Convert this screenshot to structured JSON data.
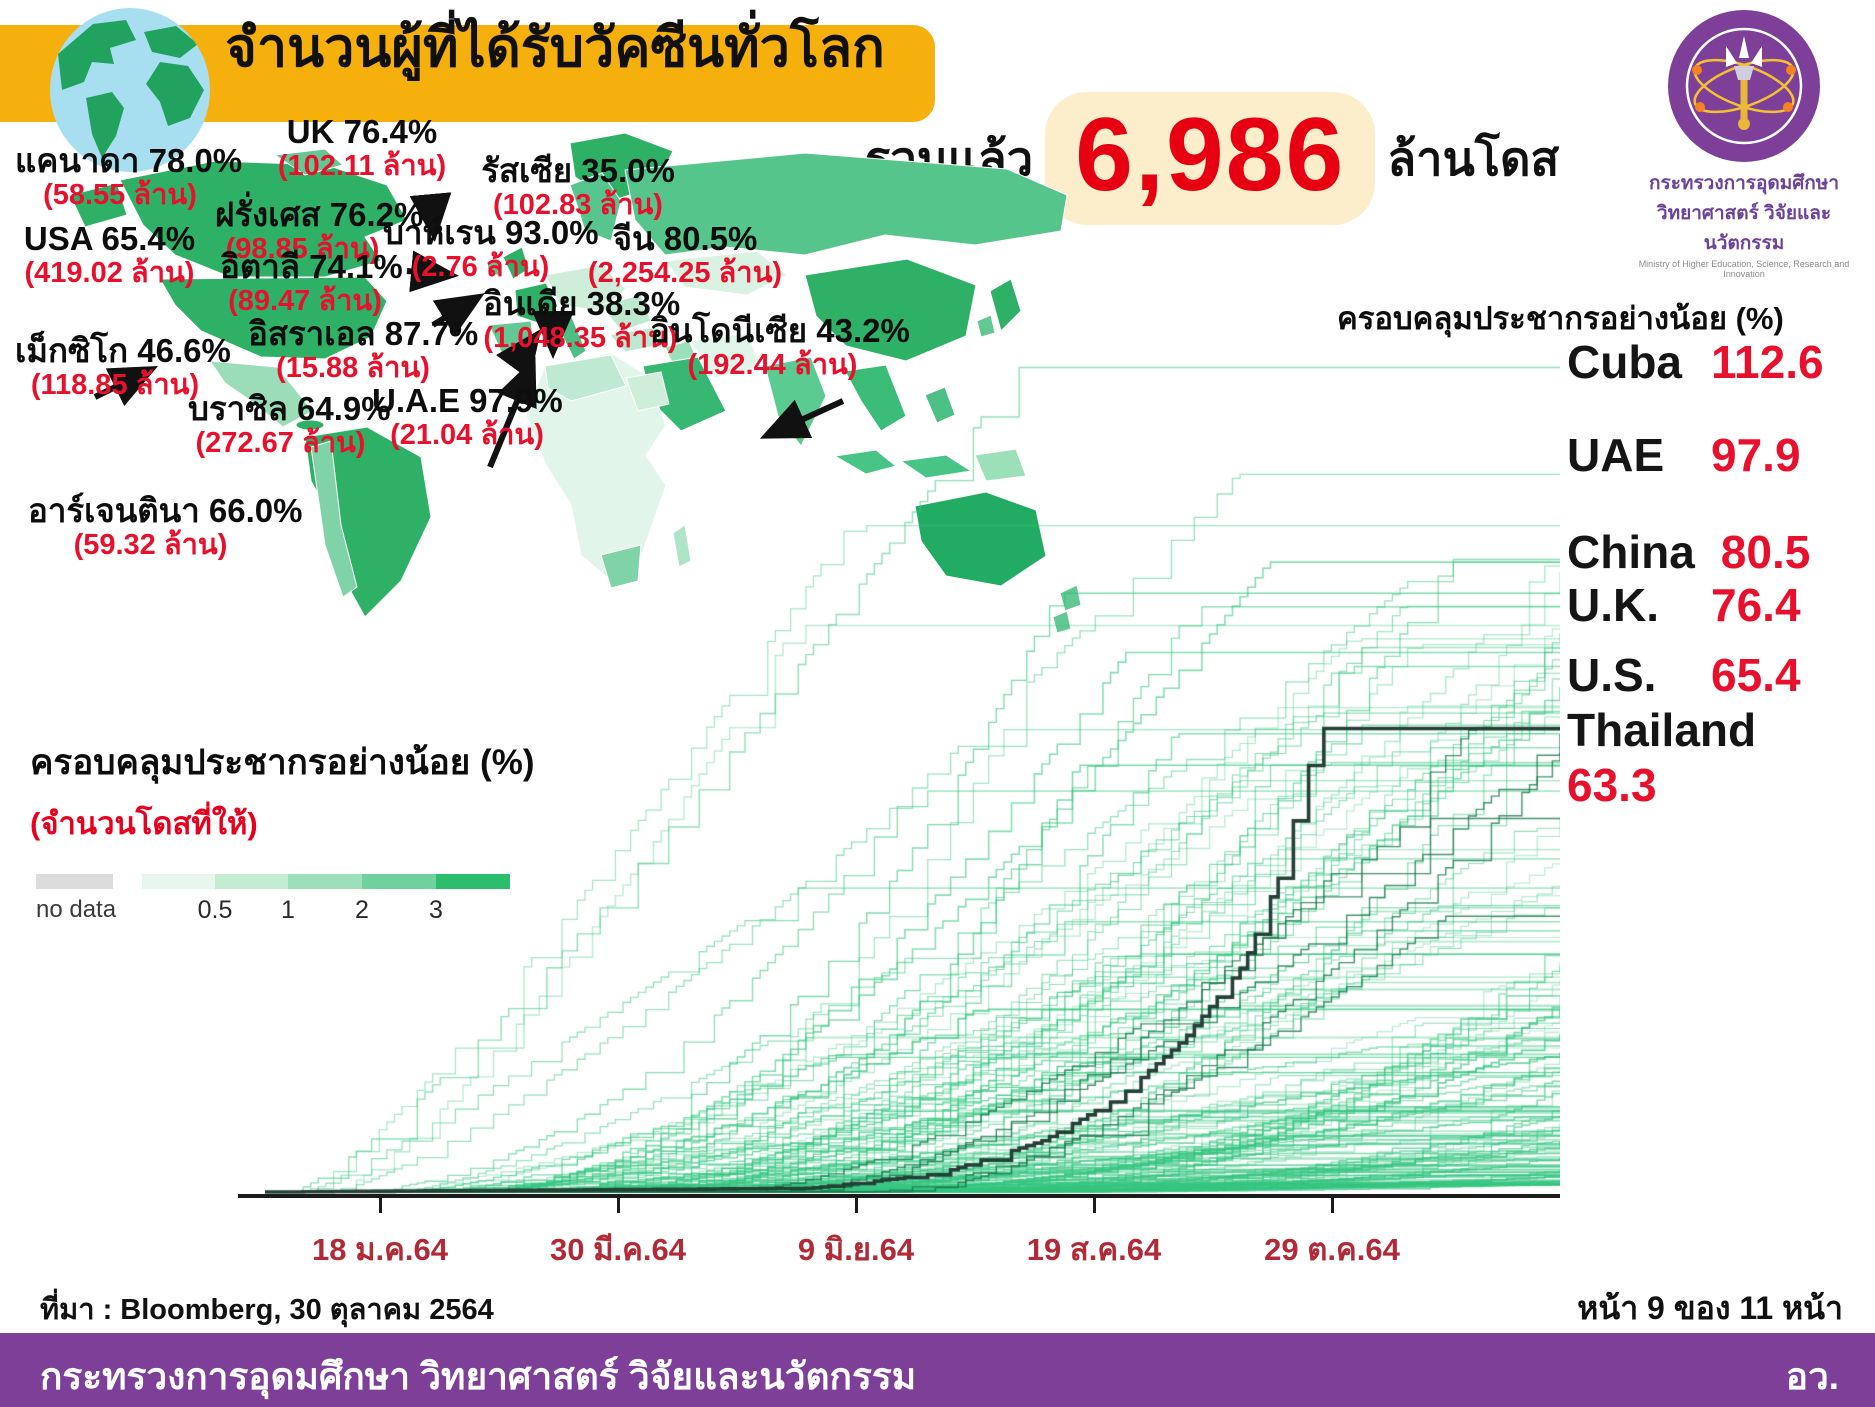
{
  "header": {
    "title": "จำนวนผู้ที่ได้รับวัคซีนทั่วโลก"
  },
  "logo": {
    "line1": "กระทรวงการอุดมศึกษา",
    "line2": "วิทยาศาสตร์ วิจัยและนวัตกรรม",
    "line3": "Ministry of Higher Education, Science, Research and Innovation"
  },
  "total": {
    "prefix": "รวมแล้ว",
    "value": "6,986",
    "suffix": "ล้านโดส"
  },
  "map": {
    "countries": [
      {
        "label": "แคนาดา 78.0%",
        "doses": "(58.55 ล้าน)"
      },
      {
        "label": "UK 76.4%",
        "doses": "(102.11 ล้าน)"
      },
      {
        "label": "รัสเซีย 35.0%",
        "doses": "(102.83 ล้าน)"
      },
      {
        "label": "ฝรั่งเศส 76.2%",
        "doses": "(98.85 ล้าน)"
      },
      {
        "label": "บาห์เรน 93.0%",
        "doses": "(2.76 ล้าน)"
      },
      {
        "label": "จีน 80.5%",
        "doses": "(2,254.25 ล้าน)"
      },
      {
        "label": "USA 65.4%",
        "doses": "(419.02 ล้าน)"
      },
      {
        "label": "อิตาลี 74.1%",
        "doses": "(89.47 ล้าน)"
      },
      {
        "label": "อิสราเอล 87.7%",
        "doses": "(15.88 ล้าน)"
      },
      {
        "label": "อินเดีย 38.3%",
        "doses": "(1,048.35 ล้าน)"
      },
      {
        "label": "อินโดนีเซีย 43.2%",
        "doses": "(192.44 ล้าน)"
      },
      {
        "label": "เม็กซิโก 46.6%",
        "doses": "(118.85 ล้าน)"
      },
      {
        "label": "บราซิล 64.9%",
        "doses": "(272.67 ล้าน)"
      },
      {
        "label": "U.A.E 97.9%",
        "doses": "(21.04 ล้าน)"
      },
      {
        "label": "อาร์เจนตินา 66.0%",
        "doses": "(59.32 ล้าน)"
      }
    ]
  },
  "legend": {
    "title": "ครอบคลุมประชากรอย่างน้อย (%)",
    "subtitle": "(จำนวนโดสที่ให้)",
    "no_data_label": "no data",
    "no_data_color": "#dcdcdc",
    "tick_labels": [
      "0.5",
      "1",
      "2",
      "3"
    ],
    "colors": [
      "#e8f7ee",
      "#c3ecd3",
      "#9be0b8",
      "#6fd19b",
      "#2dbd6e"
    ]
  },
  "chart_data": {
    "type": "line",
    "title_right": "ครอบคลุมประชากรอย่างน้อย (%)",
    "x_ticks": [
      "18 ม.ค.64",
      "30 มี.ค.64",
      "9 มิ.ย.64",
      "19 ส.ค.64",
      "29 ต.ค.64"
    ],
    "ylim": [
      0,
      115
    ],
    "grid": false,
    "line_color": "#3cc480",
    "highlight_color": "#233f36",
    "highlighted": [
      {
        "name": "Cuba",
        "value": "112.6"
      },
      {
        "name": "UAE",
        "value": "97.9"
      },
      {
        "name": "China",
        "value": "80.5"
      },
      {
        "name": "U.K.",
        "value": "76.4"
      },
      {
        "name": "U.S.",
        "value": "65.4"
      },
      {
        "name": "Thailand",
        "value": "63.3"
      }
    ],
    "thailand_series": {
      "name": "Thailand",
      "end_value": 63.3
    },
    "description": "Cumulative COVID-19 vaccine doses administered per 100 population over time for ~180 countries (green step lines, unlabeled); dark line = Thailand ending at 63.3."
  },
  "footer": {
    "source": "ที่มา : Bloomberg, 30 ตุลาคม 2564",
    "page": "หน้า 9 ของ 11 หน้า",
    "ministry": "กระทรวงการอุดมศึกษา วิทยาศาสตร์ วิจัยและนวัตกรรม",
    "abbr": "อว."
  },
  "colors": {
    "banner_yellow": "#f5b00d",
    "accent_red": "#e8112d",
    "date_red": "#b02a37",
    "footer_purple": "#7d3f98",
    "total_box_cream": "#fdeecb"
  }
}
